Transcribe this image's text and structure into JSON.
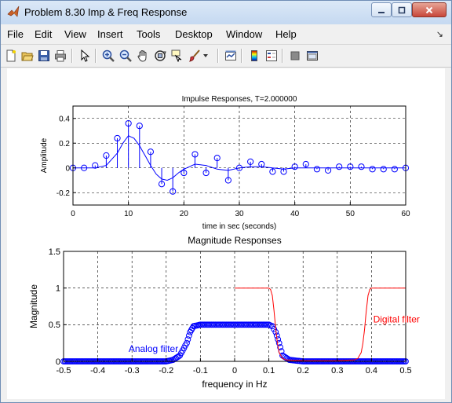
{
  "window": {
    "title": "Problem 8.30 Imp & Freq Response",
    "buttons": {
      "minimize": "minimize-icon",
      "maximize": "maximize-icon",
      "close": "close-icon"
    }
  },
  "menubar": {
    "items": [
      "File",
      "Edit",
      "View",
      "Insert",
      "Tools",
      "Desktop",
      "Window",
      "Help"
    ],
    "dock_icon": "dock-arrow-icon"
  },
  "toolbar": {
    "icons": [
      "new-figure-icon",
      "open-file-icon",
      "save-icon",
      "print-icon",
      "edit-plot-arrow-icon",
      "zoom-in-icon",
      "zoom-out-icon",
      "pan-hand-icon",
      "rotate-3d-icon",
      "data-cursor-icon",
      "brush-icon",
      "link-plot-icon",
      "colorbar-icon",
      "legend-icon",
      "hide-plot-tools-icon",
      "show-plot-tools-icon"
    ]
  },
  "colors": {
    "blue": "#0000ff",
    "red": "#ff0000",
    "grid": "#000000"
  },
  "chart_data": [
    {
      "type": "scatter",
      "title": "Impulse Responses, T=2.000000",
      "xlabel": "time in sec (seconds)",
      "ylabel": "Amplitude",
      "xlim": [
        0,
        60
      ],
      "ylim": [
        -0.3,
        0.5
      ],
      "xticks": [
        "0",
        "10",
        "20",
        "30",
        "40",
        "50",
        "60"
      ],
      "yticks": [
        "-0.2",
        "0",
        "0.2",
        "0.4"
      ],
      "xtick_values": [
        0,
        10,
        20,
        30,
        40,
        50,
        60
      ],
      "ytick_values": [
        -0.2,
        0,
        0.2,
        0.4
      ],
      "grid": true,
      "series": [
        {
          "style": "stem",
          "x": [
            0,
            2,
            4,
            6,
            8,
            10,
            12,
            14,
            16,
            18,
            20,
            22,
            24,
            26,
            28,
            30,
            32,
            34,
            36,
            38,
            40,
            42,
            44,
            46,
            48,
            50,
            52,
            54,
            56,
            58,
            60
          ],
          "values": [
            0,
            0,
            0.02,
            0.1,
            0.24,
            0.36,
            0.34,
            0.13,
            -0.13,
            -0.19,
            -0.04,
            0.11,
            -0.04,
            0.08,
            -0.1,
            0,
            0.05,
            0.03,
            -0.03,
            -0.03,
            0.01,
            0.03,
            -0.01,
            -0.02,
            0.01,
            0.01,
            0.01,
            -0.01,
            -0.01,
            -0.01,
            0
          ]
        },
        {
          "style": "line",
          "x": [
            0,
            4,
            6,
            8,
            9,
            10,
            11,
            12,
            13,
            14,
            15,
            16,
            17,
            18,
            19,
            20,
            22,
            24,
            26,
            28,
            30,
            32,
            34,
            36,
            38,
            40,
            44,
            48,
            52,
            56,
            60
          ],
          "values": [
            0,
            0,
            0.02,
            0.12,
            0.2,
            0.26,
            0.24,
            0.18,
            0.1,
            0.02,
            -0.05,
            -0.09,
            -0.1,
            -0.08,
            -0.04,
            -0.01,
            0.03,
            0.02,
            -0.01,
            -0.02,
            0,
            0.01,
            0.01,
            0,
            -0.01,
            0,
            0,
            0,
            0,
            0,
            0
          ]
        }
      ]
    },
    {
      "type": "line",
      "title": "Magnitude Responses",
      "xlabel": "frequency in Hz",
      "ylabel": "Magnitude",
      "xlim": [
        -0.5,
        0.5
      ],
      "ylim": [
        0,
        1.5
      ],
      "xticks": [
        "-0.5",
        "-0.4",
        "-0.3",
        "-0.2",
        "-0.1",
        "0",
        "0.1",
        "0.2",
        "0.3",
        "0.4",
        "0.5"
      ],
      "yticks": [
        "0",
        "0.5",
        "1",
        "1.5"
      ],
      "xtick_values": [
        -0.5,
        -0.4,
        -0.3,
        -0.2,
        -0.1,
        0,
        0.1,
        0.2,
        0.3,
        0.4,
        0.5
      ],
      "ytick_values": [
        0,
        0.5,
        1,
        1.5
      ],
      "grid": true,
      "annotations": [
        {
          "text": "Analog filter",
          "x": -0.31,
          "y": 0.13,
          "color": "#0000ff"
        },
        {
          "text": "Digital filter",
          "x": 0.405,
          "y": 0.53,
          "color": "#ff0000"
        }
      ],
      "series": [
        {
          "name": "Analog filter",
          "style": "markers",
          "x": [
            -0.5,
            -0.2,
            -0.18,
            -0.16,
            -0.14,
            -0.13,
            -0.12,
            -0.1,
            0,
            0.1,
            0.11,
            0.12,
            0.13,
            0.14,
            0.16,
            0.18,
            0.2,
            0.5
          ],
          "values": [
            0,
            0,
            0.02,
            0.08,
            0.25,
            0.4,
            0.48,
            0.5,
            0.5,
            0.5,
            0.48,
            0.4,
            0.25,
            0.08,
            0.02,
            0.01,
            0,
            0
          ]
        },
        {
          "name": "Digital filter",
          "style": "line",
          "x": [
            0,
            0.1,
            0.105,
            0.11,
            0.115,
            0.12,
            0.125,
            0.13,
            0.14,
            0.15,
            0.2,
            0.3,
            0.35,
            0.36,
            0.37,
            0.375,
            0.38,
            0.385,
            0.39,
            0.395,
            0.4,
            0.5
          ],
          "values": [
            1,
            1,
            0.98,
            0.9,
            0.7,
            0.45,
            0.25,
            0.12,
            0.04,
            0.02,
            0.01,
            0.01,
            0.02,
            0.04,
            0.12,
            0.25,
            0.45,
            0.7,
            0.9,
            0.98,
            1,
            1
          ]
        }
      ]
    }
  ]
}
